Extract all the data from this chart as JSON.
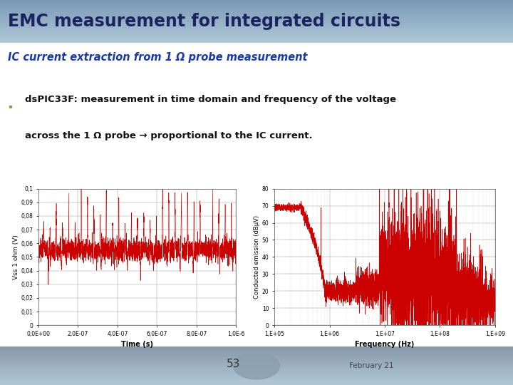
{
  "title": "EMC measurement for integrated circuits",
  "subtitle": "IC current extraction from 1 Ω probe measurement",
  "bullet_text_line1": "dsPIC33F: measurement in time domain and frequency of the voltage",
  "bullet_text_line2": "across the 1 Ω probe → proportional to the IC current.",
  "bullet_color": "#70b040",
  "title_bg_color_top": "#8aa8c0",
  "title_bg_color_bot": "#b8ccd8",
  "slide_bg_color": "#ffffff",
  "footer_bg_color": "#b8ccd8",
  "page_number": "53",
  "footer_date": "February 21",
  "title_text_color": "#1a2560",
  "subtitle_text_color": "#1a3aaa",
  "body_text_color": "#111111",
  "plot_line_color": "#cc0000",
  "time_xlabel": "Time (s)",
  "time_ylabel": "Vss 1 ohm (V)",
  "freq_xlabel": "Frequency (Hz)",
  "freq_ylabel": "Conducted emission (dBμV)",
  "time_ytick_labels": [
    "0",
    "0,01",
    "0,02",
    "0,03",
    "0,04",
    "0,05",
    "0,06",
    "0,07",
    "0,08",
    "0,09",
    "0,1"
  ],
  "time_xtick_labels": [
    "0,0E+00",
    "2,0E-07",
    "4,0E-07",
    "6,0E-07",
    "8,0E-07",
    "1,0E-6"
  ],
  "freq_ytick_labels": [
    "0",
    "10",
    "20",
    "30",
    "40",
    "50",
    "60",
    "70",
    "80"
  ],
  "freq_xtick_labels": [
    "1,E+05",
    "1,E+06",
    "1,E+07",
    "1,E+08",
    "1,E+09"
  ],
  "freq_xtick_vals": [
    100000.0,
    1000000.0,
    10000000.0,
    100000000.0,
    1000000000.0
  ]
}
